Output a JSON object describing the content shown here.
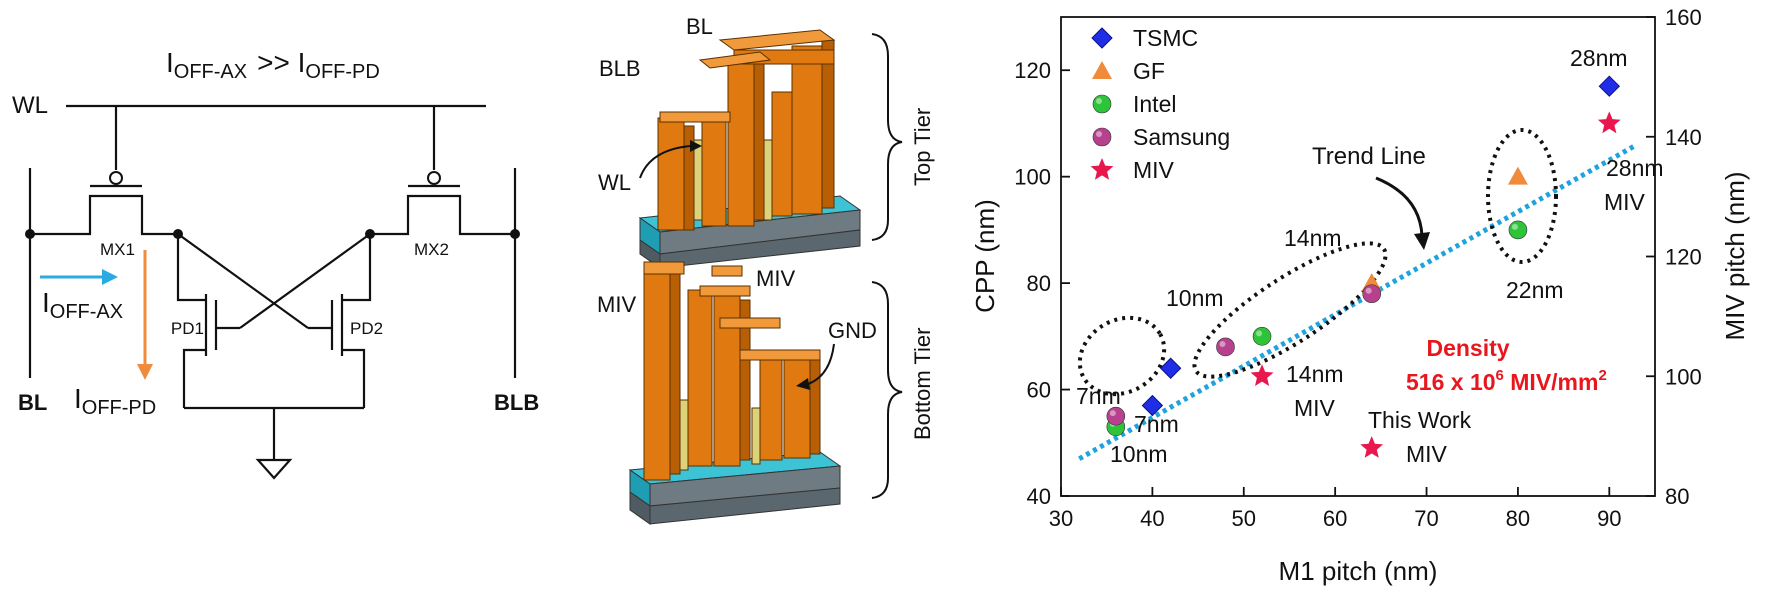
{
  "circuit": {
    "title_main": "I",
    "title_sub1": "OFF-AX",
    "title_op": ">> I",
    "title_sub2": "OFF-PD",
    "wl": "WL",
    "bl": "BL",
    "blb": "BLB",
    "mx1": "MX1",
    "mx2": "MX2",
    "pd1": "PD1",
    "pd2": "PD2",
    "ioffax_main": "I",
    "ioffax_sub": "OFF-AX",
    "ioffpd_main": "I",
    "ioffpd_sub": "OFF-PD",
    "colors": {
      "ioffax": "#29abe2",
      "ioffpd": "#f08a3c"
    }
  },
  "structure": {
    "bl": "BL",
    "blb": "BLB",
    "wl": "WL",
    "miv_left": "MIV",
    "miv_right": "MIV",
    "gnd": "GND",
    "top_tier": "Top Tier",
    "bottom_tier": "Bottom Tier",
    "colors": {
      "metal": "#e07a10",
      "via": "#dcd27a",
      "diffusion": "#3cc3d6",
      "substrate": "#6e7b82"
    }
  },
  "chart_data": {
    "type": "scatter",
    "xlabel": "M1 pitch (nm)",
    "ylabel": "CPP (nm)",
    "y2label": "MIV pitch (nm)",
    "xlim": [
      30,
      95
    ],
    "ylim": [
      40,
      130
    ],
    "y2lim": [
      80,
      160
    ],
    "xticks": [
      "30",
      "40",
      "50",
      "60",
      "70",
      "80",
      "90"
    ],
    "yticks": [
      "40",
      "60",
      "80",
      "100",
      "120"
    ],
    "y2ticks": [
      "80",
      "100",
      "120",
      "140",
      "160"
    ],
    "series": [
      {
        "name": "TSMC",
        "marker": "diamond",
        "color": "#1f2ee6",
        "points": [
          [
            40,
            57
          ],
          [
            42,
            64
          ],
          [
            90,
            117
          ]
        ]
      },
      {
        "name": "GF",
        "marker": "triangle",
        "color": "#f08a3c",
        "points": [
          [
            64,
            80
          ],
          [
            80,
            100
          ]
        ]
      },
      {
        "name": "Intel",
        "marker": "circle",
        "color": "#2ec43a",
        "points": [
          [
            36,
            53
          ],
          [
            52,
            70
          ],
          [
            80,
            90
          ]
        ]
      },
      {
        "name": "Samsung",
        "marker": "circle",
        "color": "#b8418f",
        "points": [
          [
            36,
            55
          ],
          [
            48,
            68
          ],
          [
            64,
            78
          ]
        ]
      },
      {
        "name": "MIV",
        "marker": "star",
        "color": "#e8174e",
        "points": [
          [
            52,
            62.5
          ],
          [
            64,
            49
          ],
          [
            90,
            110
          ]
        ]
      }
    ],
    "trend_line": {
      "label": "Trend Line",
      "from": [
        32,
        47
      ],
      "to": [
        93,
        106
      ],
      "color": "#1fa3dc"
    },
    "node_labels": {
      "n7_left": "7nm",
      "n7_right": "7nm",
      "n10_bottom": "10nm",
      "n10_top": "10nm",
      "n14_top": "14nm",
      "n14_miv": "14nm",
      "n14_miv2": "MIV",
      "n22": "22nm",
      "n28_top": "28nm",
      "n28_miv": "28nm",
      "n28_miv2": "MIV",
      "this_work": "This Work",
      "this_work_miv": "MIV"
    },
    "density": {
      "line1": "Density",
      "line2a": "516 x 10",
      "line2sup": "6",
      "line2b": " MIV/mm",
      "line2sup2": "2",
      "color": "#e8171e"
    }
  }
}
